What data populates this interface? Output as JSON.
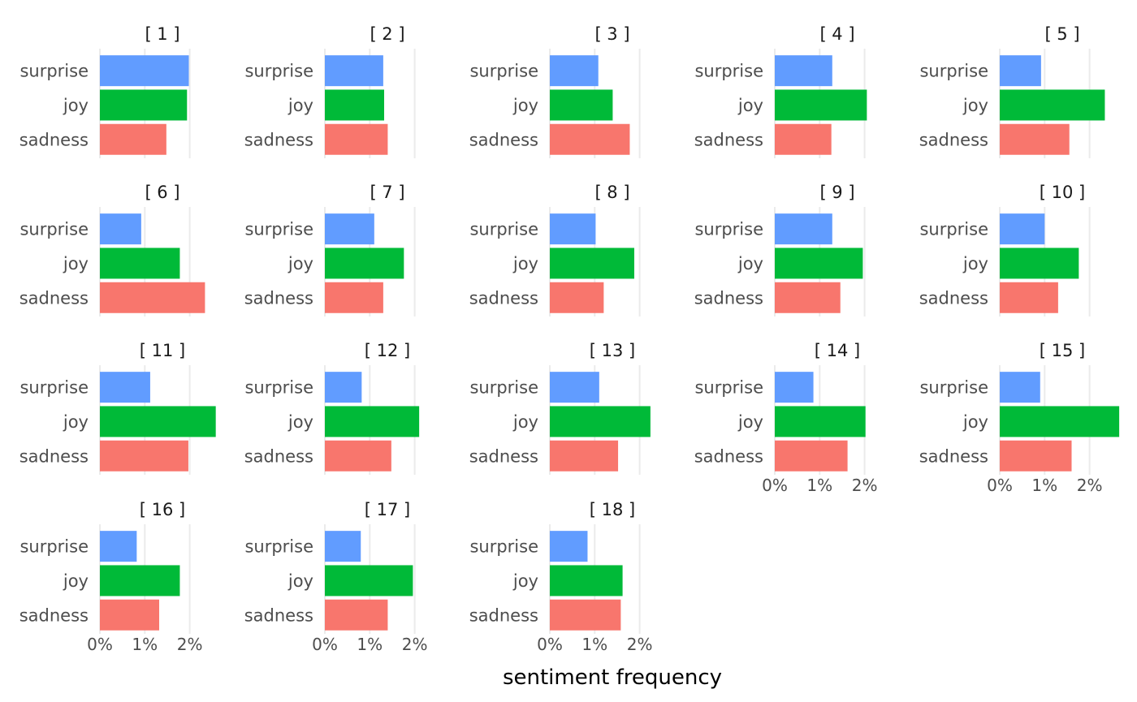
{
  "chart_data": {
    "type": "bar",
    "orientation": "horizontal",
    "facet": "panels 1 to 18",
    "categories": [
      "surprise",
      "joy",
      "sadness"
    ],
    "colors": {
      "surprise": "#619CFF",
      "joy": "#00BA38",
      "sadness": "#F8766D"
    },
    "xlabel": "sentiment frequency",
    "xlim": [
      0,
      2.6
    ],
    "x_ticks": [
      0,
      1,
      2
    ],
    "x_tick_labels": [
      "0%",
      "1%",
      "2%"
    ],
    "grid": "vertical major gridlines",
    "panels": [
      {
        "title": "[ 1 ]",
        "values": {
          "surprise": 1.98,
          "joy": 1.94,
          "sadness": 1.48
        }
      },
      {
        "title": "[ 2 ]",
        "values": {
          "surprise": 1.3,
          "joy": 1.32,
          "sadness": 1.4
        }
      },
      {
        "title": "[ 3 ]",
        "values": {
          "surprise": 1.08,
          "joy": 1.4,
          "sadness": 1.78
        }
      },
      {
        "title": "[ 4 ]",
        "values": {
          "surprise": 1.28,
          "joy": 2.05,
          "sadness": 1.26
        }
      },
      {
        "title": "[ 5 ]",
        "values": {
          "surprise": 0.92,
          "joy": 2.34,
          "sadness": 1.55
        }
      },
      {
        "title": "[ 6 ]",
        "values": {
          "surprise": 0.92,
          "joy": 1.78,
          "sadness": 2.34
        }
      },
      {
        "title": "[ 7 ]",
        "values": {
          "surprise": 1.1,
          "joy": 1.76,
          "sadness": 1.3
        }
      },
      {
        "title": "[ 8 ]",
        "values": {
          "surprise": 1.02,
          "joy": 1.88,
          "sadness": 1.2
        }
      },
      {
        "title": "[ 9 ]",
        "values": {
          "surprise": 1.28,
          "joy": 1.96,
          "sadness": 1.46
        }
      },
      {
        "title": "[ 10 ]",
        "values": {
          "surprise": 1.0,
          "joy": 1.76,
          "sadness": 1.3
        }
      },
      {
        "title": "[ 11 ]",
        "values": {
          "surprise": 1.12,
          "joy": 2.58,
          "sadness": 1.97
        }
      },
      {
        "title": "[ 12 ]",
        "values": {
          "surprise": 0.82,
          "joy": 2.1,
          "sadness": 1.48
        }
      },
      {
        "title": "[ 13 ]",
        "values": {
          "surprise": 1.1,
          "joy": 2.24,
          "sadness": 1.52
        }
      },
      {
        "title": "[ 14 ]",
        "values": {
          "surprise": 0.86,
          "joy": 2.02,
          "sadness": 1.62
        }
      },
      {
        "title": "[ 15 ]",
        "values": {
          "surprise": 0.9,
          "joy": 2.66,
          "sadness": 1.6
        }
      },
      {
        "title": "[ 16 ]",
        "values": {
          "surprise": 0.82,
          "joy": 1.78,
          "sadness": 1.32
        }
      },
      {
        "title": "[ 17 ]",
        "values": {
          "surprise": 0.8,
          "joy": 1.96,
          "sadness": 1.4
        }
      },
      {
        "title": "[ 18 ]",
        "values": {
          "surprise": 0.84,
          "joy": 1.62,
          "sadness": 1.58
        }
      }
    ]
  }
}
